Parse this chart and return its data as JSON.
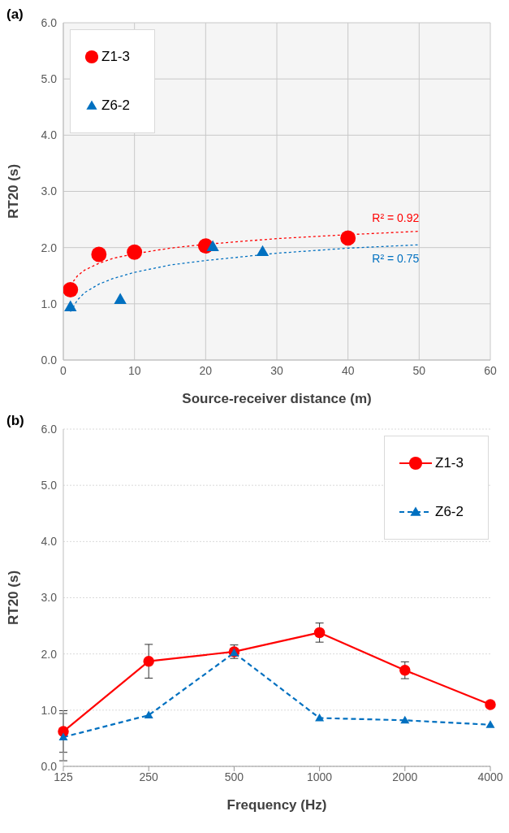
{
  "chart_data": [
    {
      "type": "scatter",
      "title": "(a)",
      "xlabel": "Source-receiver distance (m)",
      "ylabel": "RT20 (s)",
      "xlim": [
        0,
        60
      ],
      "xticks": [
        0,
        10,
        20,
        30,
        40,
        50,
        60
      ],
      "ylim": [
        0,
        6
      ],
      "yticks": [
        {
          "value": 0,
          "label": "0.0"
        },
        {
          "value": 1,
          "label": "1.0"
        },
        {
          "value": 2,
          "label": "2.0"
        },
        {
          "value": 3,
          "label": "3.0"
        },
        {
          "value": 4,
          "label": "4.0"
        },
        {
          "value": 5,
          "label": "5.0"
        },
        {
          "value": 6,
          "label": "6.0"
        }
      ],
      "grid": true,
      "legend": "top left",
      "series": [
        {
          "name": "Z1-3",
          "color": "#ff0000",
          "marker": "circle",
          "x": [
            1,
            5,
            10,
            20,
            40
          ],
          "values": [
            1.25,
            1.88,
            1.92,
            2.03,
            2.17
          ]
        },
        {
          "name": "Z6-2",
          "color": "#0070c0",
          "marker": "triangle",
          "x": [
            1,
            8,
            21,
            28
          ],
          "values": [
            0.95,
            1.08,
            2.02,
            1.93
          ]
        },
        {
          "name": "R² = 0.92",
          "type": "line",
          "color": "#ff0000",
          "line_style": "dotted",
          "marker": "none",
          "x": [
            1,
            2,
            3,
            5,
            7,
            10,
            15,
            20,
            30,
            40,
            50
          ],
          "values": [
            1.33,
            1.5,
            1.6,
            1.72,
            1.81,
            1.89,
            1.99,
            2.06,
            2.16,
            2.23,
            2.29
          ]
        },
        {
          "name": "R² = 0.75",
          "type": "line",
          "color": "#0070c0",
          "line_style": "dotted",
          "marker": "none",
          "x": [
            1,
            2,
            3,
            5,
            7,
            10,
            15,
            20,
            30,
            40,
            50
          ],
          "values": [
            0.86,
            1.07,
            1.2,
            1.35,
            1.45,
            1.56,
            1.69,
            1.77,
            1.9,
            1.99,
            2.05
          ]
        }
      ]
    },
    {
      "type": "line",
      "title": "(b)",
      "xlabel": "Frequency (Hz)",
      "ylabel": "RT20 (s)",
      "categories": [
        "125",
        "250",
        "500",
        "1000",
        "2000",
        "4000"
      ],
      "ylim": [
        0,
        6
      ],
      "yticks": [
        {
          "value": 0,
          "label": "0.0"
        },
        {
          "value": 1,
          "label": "1.0"
        },
        {
          "value": 2,
          "label": "2.0"
        },
        {
          "value": 3,
          "label": "3.0"
        },
        {
          "value": 4,
          "label": "4.0"
        },
        {
          "value": 5,
          "label": "5.0"
        },
        {
          "value": 6,
          "label": "6.0"
        }
      ],
      "grid": "y",
      "legend": "top right",
      "series": [
        {
          "name": "Z1-3",
          "color": "#ff0000",
          "marker": "circle",
          "line_style": "solid",
          "values": [
            0.62,
            1.87,
            2.04,
            2.38,
            1.71,
            1.1
          ],
          "errors": [
            0.37,
            0.3,
            0.12,
            0.17,
            0.15,
            null
          ]
        },
        {
          "name": "Z6-2",
          "color": "#0070c0",
          "marker": "triangle",
          "line_style": "dashed",
          "values": [
            0.52,
            0.91,
            2.02,
            0.86,
            0.82,
            0.74
          ],
          "errors": [
            0.42,
            null,
            null,
            null,
            null,
            null
          ]
        }
      ]
    }
  ]
}
